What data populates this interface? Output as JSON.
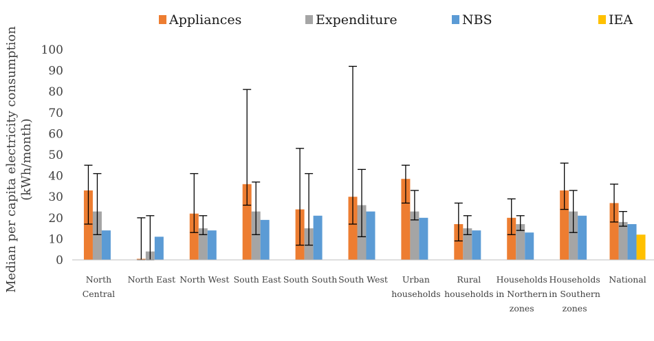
{
  "chart_data": {
    "type": "bar",
    "title": "",
    "xlabel": "",
    "ylabel_lines": [
      "Median per capita electricity consumption",
      "(kWh/month)"
    ],
    "ylim": [
      0,
      100
    ],
    "yticks": [
      0,
      10,
      20,
      30,
      40,
      50,
      60,
      70,
      80,
      90,
      100
    ],
    "grid": false,
    "legend_position": "top",
    "categories": [
      [
        "North",
        "Central"
      ],
      [
        "North East"
      ],
      [
        "North West"
      ],
      [
        "South East"
      ],
      [
        "South South"
      ],
      [
        "South West"
      ],
      [
        "Urban",
        "households"
      ],
      [
        "Rural",
        "households"
      ],
      [
        "Households",
        "in Northern",
        "zones"
      ],
      [
        "Households",
        "in Southern",
        "zones"
      ],
      [
        "National"
      ]
    ],
    "series": [
      {
        "name": "Appliances",
        "color": "#ED7D31",
        "values": [
          33,
          0.5,
          22,
          36,
          24,
          30,
          38.5,
          17,
          20,
          33,
          27
        ],
        "error_low": [
          17,
          0,
          13,
          26,
          7,
          17,
          27,
          9,
          12,
          24,
          18
        ],
        "error_high": [
          45,
          20,
          41,
          81,
          53,
          92,
          45,
          27,
          29,
          46,
          36
        ]
      },
      {
        "name": "Expenditure",
        "color": "#A5A5A5",
        "values": [
          23,
          4,
          15,
          23,
          15,
          26,
          23,
          15,
          17,
          23,
          18
        ],
        "error_low": [
          12,
          0,
          12,
          12,
          7,
          11,
          19,
          12,
          14,
          13,
          16
        ],
        "error_high": [
          41,
          21,
          21,
          37,
          41,
          43,
          33,
          21,
          21,
          33,
          23
        ]
      },
      {
        "name": "NBS",
        "color": "#5B9BD5",
        "values": [
          14,
          11,
          14,
          19,
          21,
          23,
          20,
          14,
          13,
          21,
          17
        ]
      },
      {
        "name": "IEA",
        "color": "#FFC000",
        "values": [
          null,
          null,
          null,
          null,
          null,
          null,
          null,
          null,
          null,
          null,
          12
        ]
      }
    ]
  }
}
